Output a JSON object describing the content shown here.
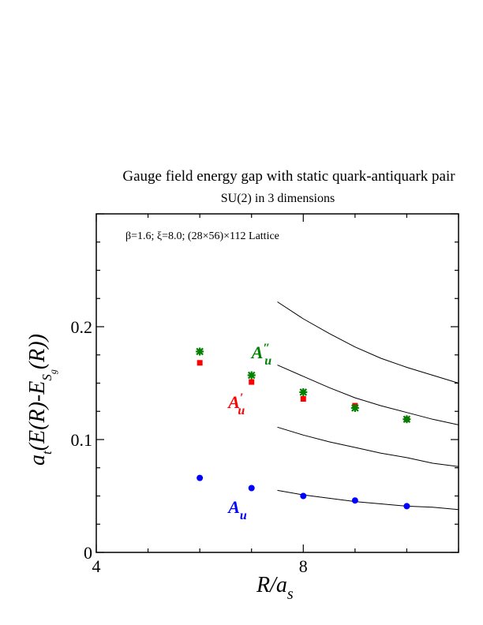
{
  "chart_data": {
    "type": "scatter",
    "title": "Gauge field energy gap with static quark-antiquark pair",
    "subtitle": "SU(2) in 3 dimensions",
    "annotation": "β=1.6;  ξ=8.0; (28×56)×112 Lattice",
    "xlabel": "R/a_s",
    "ylabel": "a_t(E(R)-E_{S_g}(R))",
    "xlim": [
      4,
      11
    ],
    "ylim": [
      0,
      0.3
    ],
    "x_ticks": [
      4,
      8
    ],
    "y_ticks": [
      0,
      0.1,
      0.2
    ],
    "x_tick_labels": [
      "4",
      "8"
    ],
    "y_tick_labels": [
      "0",
      "0.1",
      "0.2"
    ],
    "grid": false,
    "series": [
      {
        "name": "A_u",
        "color": "#0000ff",
        "marker": "circle",
        "x": [
          6,
          7,
          8,
          9,
          10
        ],
        "y": [
          0.066,
          0.057,
          0.05,
          0.046,
          0.041
        ]
      },
      {
        "name": "A_u′",
        "color": "#ff0000",
        "marker": "square",
        "x": [
          6,
          7,
          8,
          9,
          10
        ],
        "y": [
          0.168,
          0.151,
          0.136,
          0.13,
          0.118
        ]
      },
      {
        "name": "A_u″",
        "color": "#008000",
        "marker": "star",
        "x": [
          6,
          7,
          8,
          9,
          10
        ],
        "y": [
          0.178,
          0.157,
          0.142,
          0.128,
          0.118
        ]
      }
    ],
    "curves": [
      {
        "x": [
          7.5,
          8,
          8.5,
          9,
          9.5,
          10,
          10.5,
          11
        ],
        "y": [
          0.055,
          0.051,
          0.048,
          0.045,
          0.043,
          0.041,
          0.04,
          0.038
        ]
      },
      {
        "x": [
          7.5,
          8,
          8.5,
          9,
          9.5,
          10,
          10.5,
          11
        ],
        "y": [
          0.111,
          0.104,
          0.098,
          0.093,
          0.088,
          0.084,
          0.079,
          0.076
        ]
      },
      {
        "x": [
          7.5,
          8,
          8.5,
          9,
          9.5,
          10,
          10.5,
          11
        ],
        "y": [
          0.166,
          0.156,
          0.146,
          0.137,
          0.13,
          0.124,
          0.118,
          0.113
        ]
      },
      {
        "x": [
          7.5,
          8,
          8.5,
          9,
          9.5,
          10,
          10.5,
          11
        ],
        "y": [
          0.222,
          0.207,
          0.194,
          0.182,
          0.172,
          0.164,
          0.157,
          0.15
        ]
      }
    ],
    "series_labels": [
      {
        "text": "A",
        "sub": "u",
        "prime": "",
        "color": "#0000ff",
        "x": 6.55,
        "y": 0.035
      },
      {
        "text": "A",
        "sub": "u",
        "prime": "′",
        "color": "#ff0000",
        "x": 6.55,
        "y": 0.128
      },
      {
        "text": "A",
        "sub": "u",
        "prime": "″",
        "color": "#008000",
        "x": 7.0,
        "y": 0.172
      }
    ]
  }
}
